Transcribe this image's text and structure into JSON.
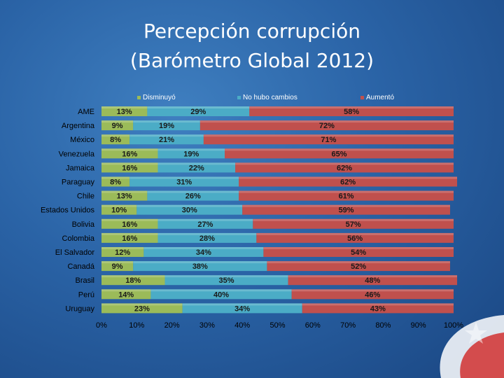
{
  "title_line1": "Percepción corrupción",
  "title_line2": "(Barómetro Global 2012)",
  "colors": {
    "disminuyo": "#9bbb59",
    "no_hubo": "#4bacc6",
    "aumento": "#c0504d"
  },
  "chart_data": {
    "type": "bar",
    "orientation": "horizontal",
    "stacked": true,
    "title": "Percepción corrupción (Barómetro Global 2012)",
    "categories": [
      "AME",
      "Argentina",
      "México",
      "Venezuela",
      "Jamaica",
      "Paraguay",
      "Chile",
      "Estados Unidos",
      "Bolivia",
      "Colombia",
      "El Salvador",
      "Canadá",
      "Brasil",
      "Perú",
      "Uruguay"
    ],
    "series": [
      {
        "name": "Disminuyó",
        "values": [
          13,
          9,
          8,
          16,
          16,
          8,
          13,
          10,
          16,
          16,
          12,
          9,
          18,
          14,
          23
        ]
      },
      {
        "name": "No hubo cambios",
        "values": [
          29,
          19,
          21,
          19,
          22,
          31,
          26,
          30,
          27,
          28,
          34,
          38,
          35,
          40,
          34
        ]
      },
      {
        "name": "Aumentó",
        "values": [
          58,
          72,
          71,
          65,
          62,
          62,
          61,
          59,
          57,
          56,
          54,
          52,
          48,
          46,
          43
        ]
      }
    ],
    "xlim": [
      0,
      100
    ],
    "xticks": [
      "0%",
      "10%",
      "20%",
      "30%",
      "40%",
      "50%",
      "60%",
      "70%",
      "80%",
      "90%",
      "100%"
    ],
    "legend": "top"
  }
}
